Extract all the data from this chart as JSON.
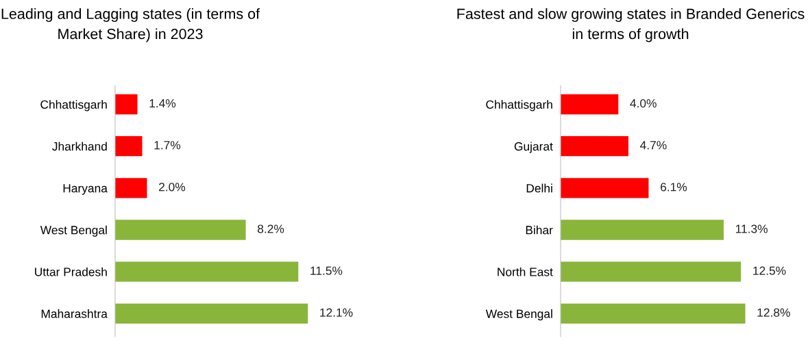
{
  "chart_data": [
    {
      "type": "bar",
      "orientation": "horizontal",
      "title": "Leading and Lagging states (in terms of Market Share) in 2023",
      "categories": [
        "Chhattisgarh",
        "Jharkhand",
        "Haryana",
        "West Bengal",
        "Uttar Pradesh",
        "Maharashtra"
      ],
      "values": [
        1.4,
        1.7,
        2.0,
        8.2,
        11.5,
        12.1
      ],
      "value_labels": [
        "1.4%",
        "1.7%",
        "2.0%",
        "8.2%",
        "11.5%",
        "12.1%"
      ],
      "colors": [
        "#ff0000",
        "#ff0000",
        "#ff0000",
        "#8ab53b",
        "#8ab53b",
        "#8ab53b"
      ]
    },
    {
      "type": "bar",
      "orientation": "horizontal",
      "title": "Fastest and slow growing states in Branded Generics in terms of growth",
      "categories": [
        "Chhattisgarh",
        "Gujarat",
        "Delhi",
        "Bihar",
        "North East",
        "West Bengal"
      ],
      "values": [
        4.0,
        4.7,
        6.1,
        11.3,
        12.5,
        12.8
      ],
      "value_labels": [
        "4.0%",
        "4.7%",
        "6.1%",
        "11.3%",
        "12.5%",
        "12.8%"
      ],
      "colors": [
        "#ff0000",
        "#ff0000",
        "#ff0000",
        "#8ab53b",
        "#8ab53b",
        "#8ab53b"
      ]
    }
  ]
}
